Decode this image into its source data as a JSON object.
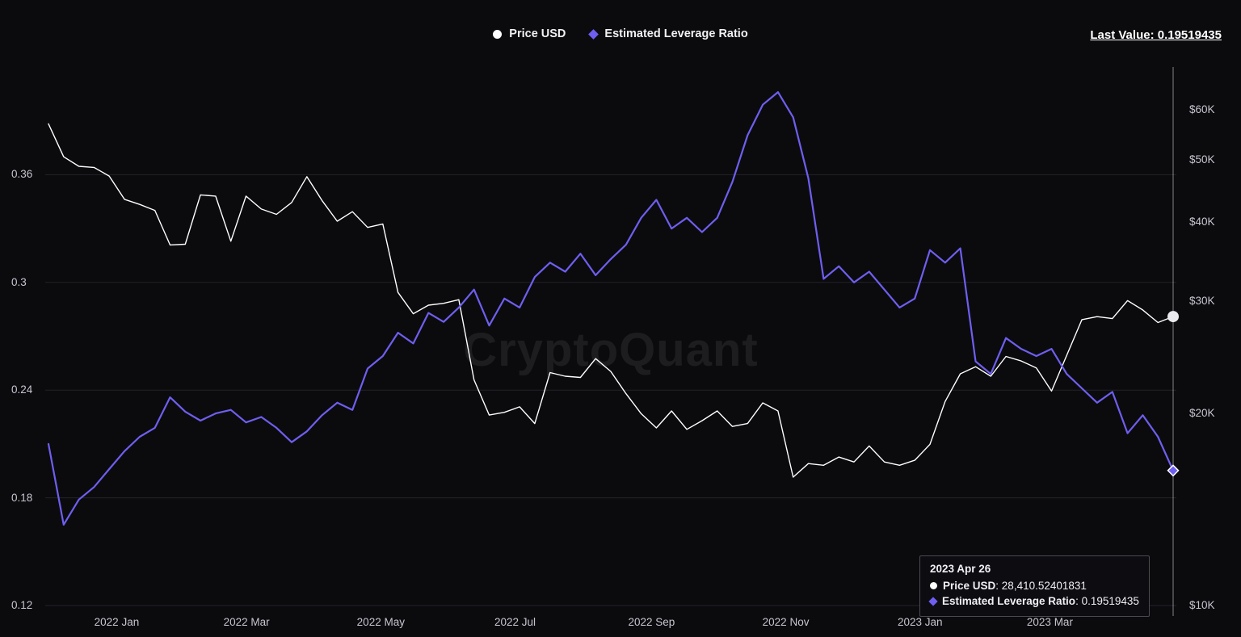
{
  "header": {
    "last_value": "Last Value: 0.19519435"
  },
  "legend": {
    "items": [
      {
        "label": "Price USD",
        "marker": "circle",
        "color": "#ffffff"
      },
      {
        "label": "Estimated Leverage Ratio",
        "marker": "diamond",
        "color": "#6e5ff0"
      }
    ]
  },
  "watermark": "CryptoQuant",
  "tooltip": {
    "date": "2023 Apr 26",
    "rows": [
      {
        "label": "Price USD",
        "separator": ": ",
        "value": "28,410.52401831",
        "marker": "circle",
        "color": "#ffffff"
      },
      {
        "label": "Estimated Leverage Ratio",
        "separator": ": ",
        "value": "0.19519435",
        "marker": "diamond",
        "color": "#6e5ff0"
      }
    ]
  },
  "chart_data": {
    "type": "line",
    "title": "",
    "x_start": "2021-12-01",
    "x_end": "2023-04-26",
    "x_ticks": [
      {
        "label": "2022 Jan",
        "date": "2022-01-01"
      },
      {
        "label": "2022 Mar",
        "date": "2022-03-01"
      },
      {
        "label": "2022 May",
        "date": "2022-05-01"
      },
      {
        "label": "2022 Jul",
        "date": "2022-07-01"
      },
      {
        "label": "2022 Sep",
        "date": "2022-09-01"
      },
      {
        "label": "2022 Nov",
        "date": "2022-11-01"
      },
      {
        "label": "2023 Jan",
        "date": "2023-01-01"
      },
      {
        "label": "2023 Mar",
        "date": "2023-03-01"
      }
    ],
    "left_axis": {
      "name": "Estimated Leverage Ratio",
      "scale": "linear",
      "range": [
        0.12,
        0.42
      ],
      "ticks": [
        0.36,
        0.3,
        0.24,
        0.18,
        0.12
      ]
    },
    "right_axis": {
      "name": "Price USD",
      "scale": "log",
      "range": [
        10000,
        70000
      ],
      "ticks": [
        "$60K",
        "$50K",
        "$40K",
        "$30K",
        "$20K",
        "$10K"
      ],
      "tick_values": [
        60000,
        50000,
        40000,
        30000,
        20000,
        10000
      ]
    },
    "grid": "horizontal",
    "legend_position": "top",
    "series": [
      {
        "name": "Price USD",
        "axis": "right",
        "color": "#ffffff",
        "last_value": 28410.52401831,
        "values": [
          57000,
          50600,
          48900,
          48700,
          47200,
          43400,
          42600,
          41700,
          36800,
          36900,
          44100,
          43900,
          37300,
          43900,
          41900,
          41100,
          42900,
          47100,
          43200,
          40100,
          41500,
          39200,
          39700,
          31000,
          28700,
          29600,
          29800,
          30200,
          22600,
          19900,
          20100,
          20500,
          19300,
          23200,
          22900,
          22800,
          24400,
          23300,
          21500,
          20000,
          19000,
          20200,
          18900,
          19500,
          20200,
          19100,
          19300,
          20800,
          20200,
          15900,
          16700,
          16600,
          17100,
          16800,
          17800,
          16800,
          16600,
          16900,
          17900,
          20900,
          23100,
          23700,
          22900,
          24600,
          24200,
          23600,
          21700,
          24700,
          28100,
          28400,
          28200,
          30100,
          29100,
          27800,
          28410.52401831
        ]
      },
      {
        "name": "Estimated Leverage Ratio",
        "axis": "left",
        "color": "#6e5ff0",
        "last_value": 0.19519435,
        "values": [
          0.21,
          0.165,
          0.179,
          0.186,
          0.196,
          0.206,
          0.214,
          0.219,
          0.236,
          0.228,
          0.223,
          0.227,
          0.229,
          0.222,
          0.225,
          0.219,
          0.211,
          0.217,
          0.226,
          0.233,
          0.229,
          0.252,
          0.259,
          0.272,
          0.266,
          0.283,
          0.278,
          0.286,
          0.296,
          0.276,
          0.291,
          0.286,
          0.303,
          0.311,
          0.306,
          0.316,
          0.304,
          0.313,
          0.321,
          0.336,
          0.346,
          0.33,
          0.336,
          0.328,
          0.336,
          0.356,
          0.382,
          0.399,
          0.406,
          0.392,
          0.358,
          0.302,
          0.309,
          0.3,
          0.306,
          0.296,
          0.286,
          0.291,
          0.318,
          0.311,
          0.319,
          0.256,
          0.249,
          0.269,
          0.263,
          0.259,
          0.263,
          0.249,
          0.241,
          0.233,
          0.239,
          0.216,
          0.226,
          0.214,
          0.19519435
        ]
      }
    ]
  }
}
